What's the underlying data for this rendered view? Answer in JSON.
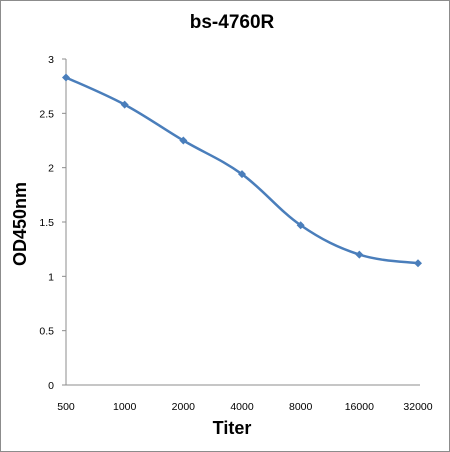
{
  "chart_data": {
    "type": "line",
    "title": "bs-4760R",
    "xlabel": "Titer",
    "ylabel": "OD450nm",
    "categories": [
      "500",
      "1000",
      "2000",
      "4000",
      "8000",
      "16000",
      "32000"
    ],
    "series": [
      {
        "values": [
          2.83,
          2.58,
          2.25,
          1.94,
          1.47,
          1.2,
          1.12
        ]
      }
    ],
    "ylim": [
      0,
      3
    ],
    "yticks": [
      "0",
      "0.5",
      "1",
      "1.5",
      "2",
      "2.5",
      "3"
    ],
    "grid": false,
    "legend": "none",
    "line_color": "#4a7ebb",
    "marker": "diamond"
  }
}
